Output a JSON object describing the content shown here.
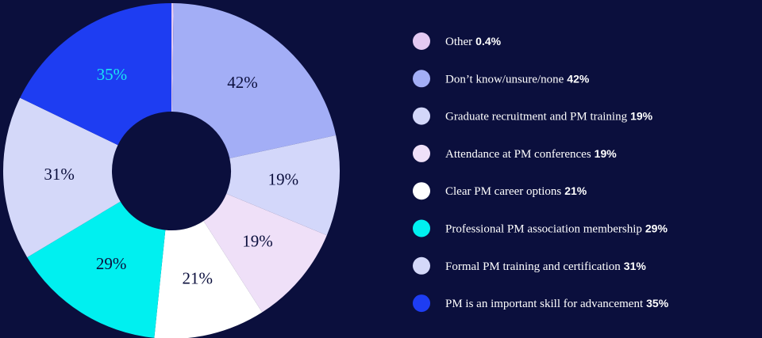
{
  "chart_data": {
    "type": "pie",
    "categories": [
      "Other",
      "Don’t know/unsure/none",
      "Graduate recruitment and PM training",
      "Attendance at PM conferences",
      "Clear PM career options",
      "Professional PM association membership",
      "Formal PM training and certification",
      "PM is an important skill for advancement"
    ],
    "values": [
      0.4,
      42,
      19,
      19,
      21,
      29,
      31,
      35
    ],
    "value_labels": [
      "0.4%",
      "42%",
      "19%",
      "19%",
      "21%",
      "29%",
      "31%",
      "35%"
    ],
    "colors": [
      "#e3c9f2",
      "#a3aef6",
      "#d3d7fa",
      "#efe0f8",
      "#ffffff",
      "#00f0f0",
      "#d4d8f9",
      "#1e3df2"
    ],
    "donut": true
  }
}
